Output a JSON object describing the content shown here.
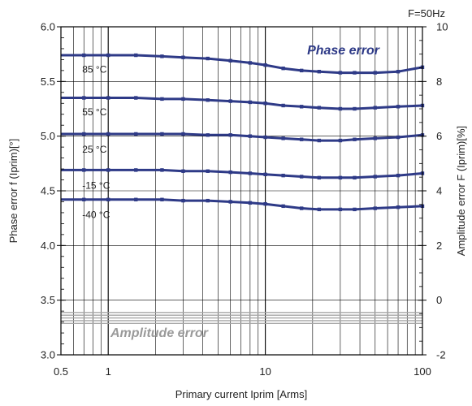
{
  "chart_data": {
    "type": "line",
    "frequency_label": "F=50Hz",
    "xlabel": "Primary current Iprim [Arms]",
    "ylabel_left": "Phase error f (Iprim)[°]",
    "ylabel_right": "Amplitude error F (Iprim)[%]",
    "x_scale": "log",
    "xlim": [
      0.5,
      100
    ],
    "ylim_left": [
      3.0,
      6.0
    ],
    "ylim_right": [
      -2,
      10
    ],
    "x_ticks": [
      {
        "value": 0.5,
        "label": "0.5"
      },
      {
        "value": 1,
        "label": "1"
      },
      {
        "value": 10,
        "label": "10"
      },
      {
        "value": 100,
        "label": "100"
      }
    ],
    "y_left_ticks": [
      {
        "value": 3.0,
        "label": "3.0"
      },
      {
        "value": 3.5,
        "label": "3.5"
      },
      {
        "value": 4.0,
        "label": "4.0"
      },
      {
        "value": 4.5,
        "label": "4.5"
      },
      {
        "value": 5.0,
        "label": "5.0"
      },
      {
        "value": 5.5,
        "label": "5.5"
      },
      {
        "value": 6.0,
        "label": "6.0"
      }
    ],
    "y_right_ticks": [
      {
        "value": -2,
        "label": "-2"
      },
      {
        "value": 0,
        "label": "0"
      },
      {
        "value": 2,
        "label": "2"
      },
      {
        "value": 4,
        "label": "4"
      },
      {
        "value": 6,
        "label": "6"
      },
      {
        "value": 8,
        "label": "8"
      },
      {
        "value": 10,
        "label": "10"
      }
    ],
    "grid": true,
    "annotations": {
      "phase": {
        "text": "Phase error",
        "color": "#2e3a87"
      },
      "amplitude": {
        "text": "Amplitude error",
        "color": "#9a9a9a"
      }
    },
    "series": [
      {
        "name": "85 °C",
        "axis": "left",
        "color": "#2e3a87",
        "x": [
          0.5,
          0.7,
          1,
          1.5,
          2.2,
          3,
          4.3,
          6,
          8,
          10,
          13,
          17,
          22,
          30,
          37,
          50,
          70,
          100
        ],
        "y": [
          5.74,
          5.74,
          5.74,
          5.74,
          5.73,
          5.72,
          5.71,
          5.69,
          5.67,
          5.65,
          5.62,
          5.6,
          5.59,
          5.58,
          5.58,
          5.58,
          5.59,
          5.63
        ],
        "label_x": 0.7,
        "label_y": 5.61
      },
      {
        "name": "55 °C",
        "axis": "left",
        "color": "#2e3a87",
        "x": [
          0.5,
          0.7,
          1,
          1.5,
          2.2,
          3,
          4.3,
          6,
          8,
          10,
          13,
          17,
          22,
          30,
          37,
          50,
          70,
          100
        ],
        "y": [
          5.35,
          5.35,
          5.35,
          5.35,
          5.34,
          5.34,
          5.33,
          5.32,
          5.31,
          5.3,
          5.28,
          5.27,
          5.26,
          5.25,
          5.25,
          5.26,
          5.27,
          5.28
        ],
        "label_x": 0.7,
        "label_y": 5.22
      },
      {
        "name": "25 °C",
        "axis": "left",
        "color": "#2e3a87",
        "x": [
          0.5,
          0.7,
          1,
          1.5,
          2.2,
          3,
          4.3,
          6,
          8,
          10,
          13,
          17,
          22,
          30,
          37,
          50,
          70,
          100
        ],
        "y": [
          5.02,
          5.02,
          5.02,
          5.02,
          5.02,
          5.02,
          5.01,
          5.01,
          5.0,
          4.99,
          4.98,
          4.97,
          4.96,
          4.96,
          4.97,
          4.98,
          4.99,
          5.01
        ],
        "label_x": 0.7,
        "label_y": 4.88
      },
      {
        "name": "-15 °C",
        "axis": "left",
        "color": "#2e3a87",
        "x": [
          0.5,
          0.7,
          1,
          1.5,
          2.2,
          3,
          4.3,
          6,
          8,
          10,
          13,
          17,
          22,
          30,
          37,
          50,
          70,
          100
        ],
        "y": [
          4.69,
          4.69,
          4.69,
          4.69,
          4.69,
          4.68,
          4.68,
          4.67,
          4.66,
          4.65,
          4.64,
          4.63,
          4.62,
          4.62,
          4.62,
          4.63,
          4.64,
          4.66
        ],
        "label_x": 0.7,
        "label_y": 4.55
      },
      {
        "name": "-40 °C",
        "axis": "left",
        "color": "#2e3a87",
        "x": [
          0.5,
          0.7,
          1,
          1.5,
          2.2,
          3,
          4.3,
          6,
          8,
          10,
          13,
          17,
          22,
          30,
          37,
          50,
          70,
          100
        ],
        "y": [
          4.42,
          4.42,
          4.42,
          4.42,
          4.42,
          4.41,
          4.41,
          4.4,
          4.39,
          4.38,
          4.36,
          4.34,
          4.33,
          4.33,
          4.33,
          4.34,
          4.35,
          4.36
        ],
        "label_x": 0.7,
        "label_y": 4.28
      },
      {
        "axis": "right",
        "color": "#a6a6a6",
        "x": [
          0.5,
          100
        ],
        "y": [
          -0.45,
          -0.45
        ]
      },
      {
        "axis": "right",
        "color": "#a6a6a6",
        "x": [
          0.5,
          100
        ],
        "y": [
          -0.55,
          -0.55
        ]
      },
      {
        "axis": "right",
        "color": "#a6a6a6",
        "x": [
          0.5,
          100
        ],
        "y": [
          -0.65,
          -0.65
        ]
      },
      {
        "axis": "right",
        "color": "#a6a6a6",
        "x": [
          0.5,
          100
        ],
        "y": [
          -0.75,
          -0.75
        ]
      },
      {
        "axis": "right",
        "color": "#a6a6a6",
        "x": [
          0.5,
          100
        ],
        "y": [
          -0.85,
          -0.85
        ]
      }
    ]
  }
}
